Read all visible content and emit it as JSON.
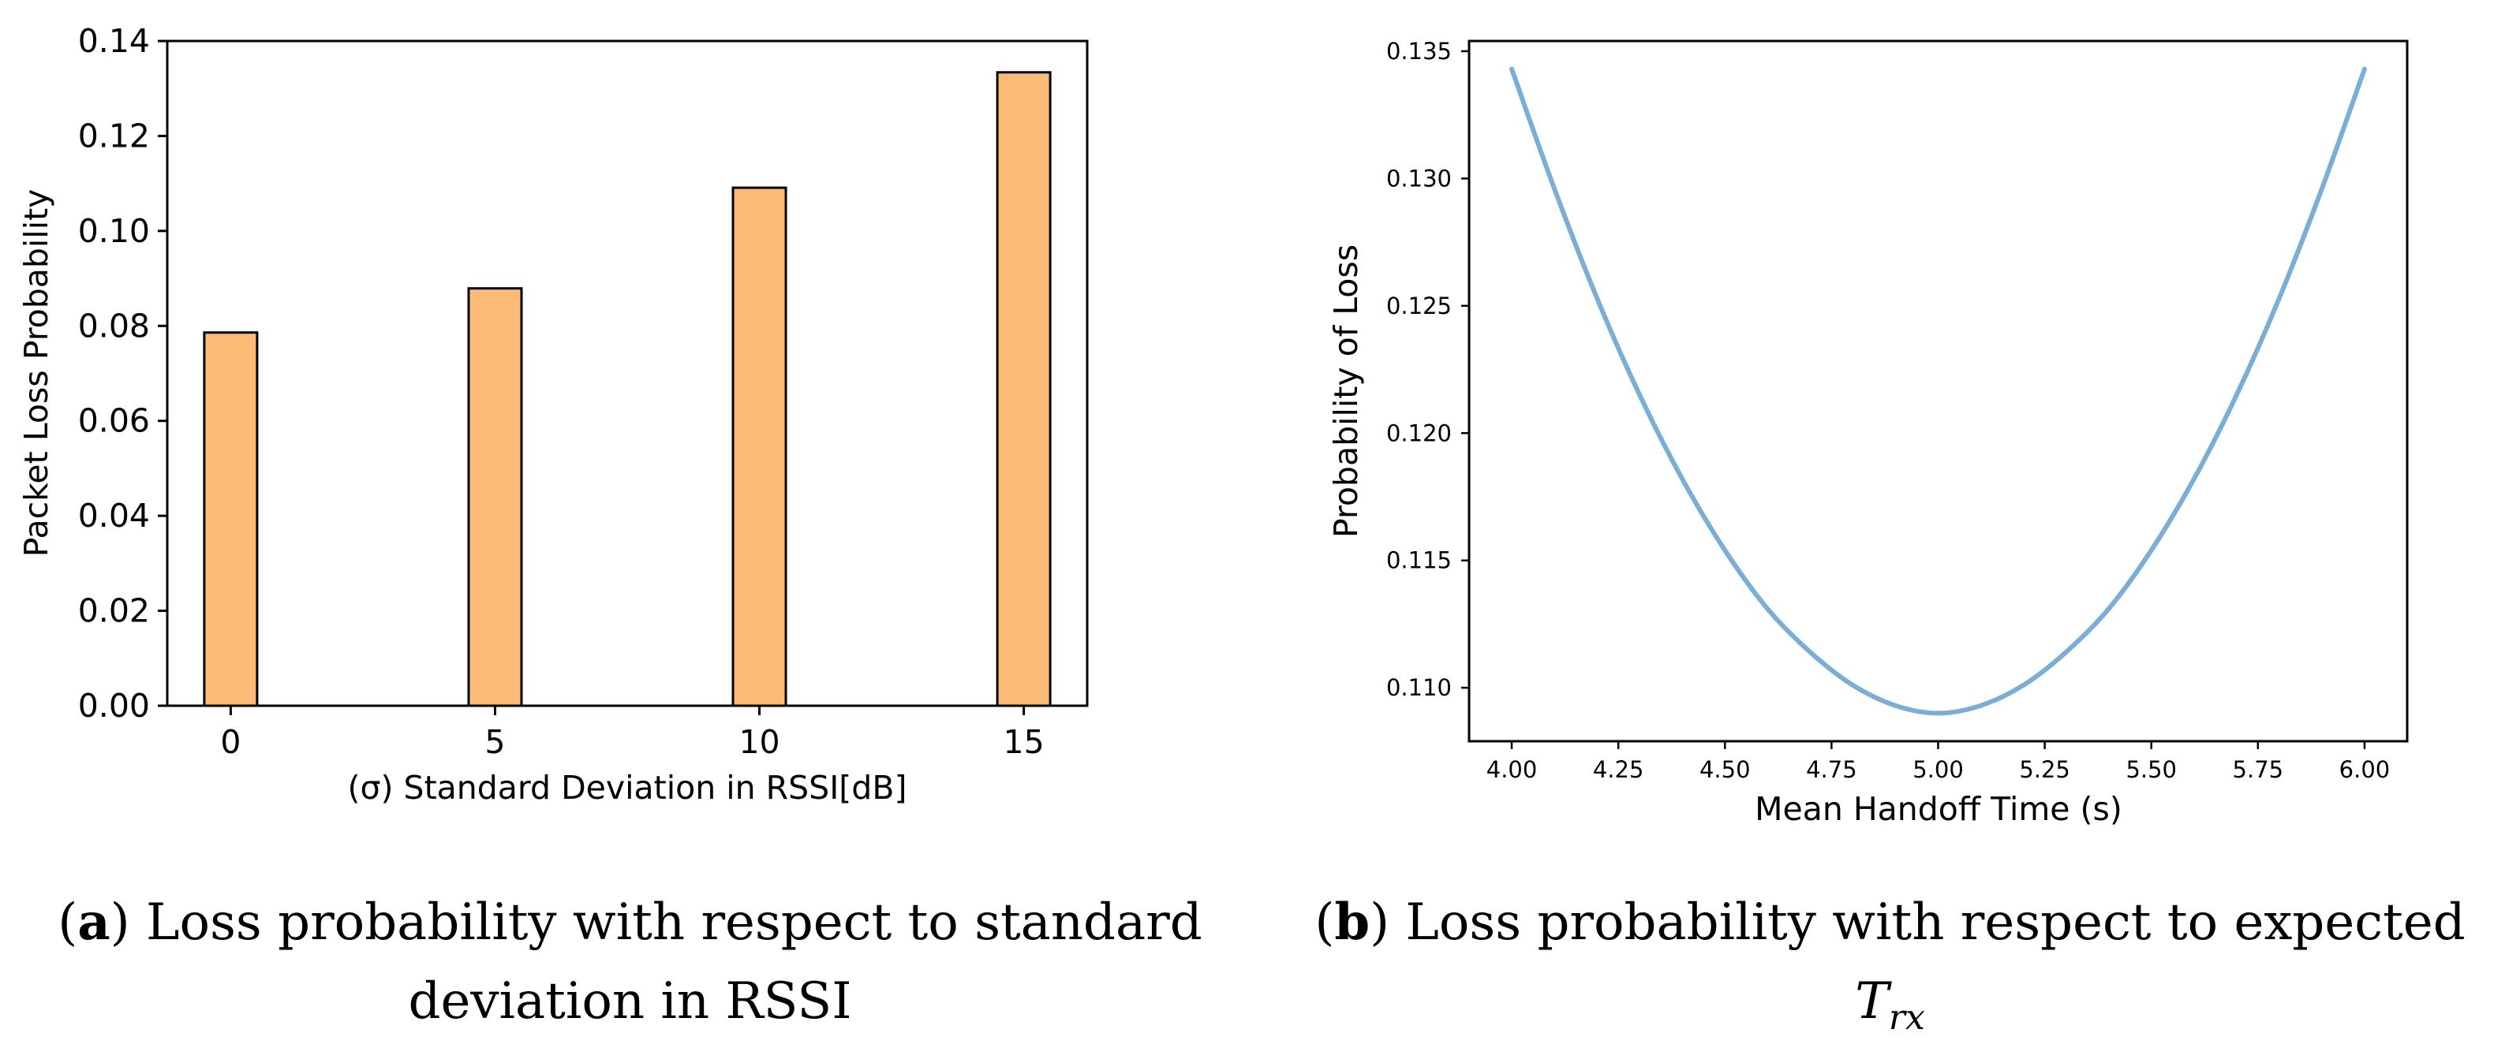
{
  "chart_data": [
    {
      "type": "bar",
      "categories": [
        "0",
        "5",
        "10",
        "15"
      ],
      "x": [
        0,
        5,
        10,
        15
      ],
      "values": [
        0.0786,
        0.0879,
        0.1091,
        0.1334
      ],
      "title": "",
      "xlabel": "(σ) Standard Deviation in RSSI[dB]",
      "ylabel": "Packet Loss Probability",
      "xlim": [
        -1.2,
        16.2
      ],
      "ylim": [
        0.0,
        0.14
      ],
      "yticks": [
        "0.00",
        "0.02",
        "0.04",
        "0.06",
        "0.08",
        "0.10",
        "0.12",
        "0.14"
      ],
      "xticks": [
        "0",
        "5",
        "10",
        "15"
      ],
      "bar_color": "#fdbb78",
      "edge_color": "#000000",
      "grid": false
    },
    {
      "type": "line",
      "title": "",
      "xlabel": "Mean Handoff Time (s)",
      "ylabel": "Probability of Loss",
      "xlim": [
        3.9,
        6.1
      ],
      "ylim": [
        0.1079,
        0.1354
      ],
      "xticks": [
        "4.00",
        "4.25",
        "4.50",
        "4.75",
        "5.00",
        "5.25",
        "5.50",
        "5.75",
        "6.00"
      ],
      "yticks": [
        "0.110",
        "0.115",
        "0.120",
        "0.125",
        "0.130",
        "0.135"
      ],
      "series": [
        {
          "x": [
            4.0,
            4.1,
            4.2,
            4.3,
            4.4,
            4.5,
            4.6,
            4.7,
            4.8,
            4.9,
            5.0,
            5.1,
            5.2,
            5.3,
            5.4,
            5.5,
            5.6,
            5.7,
            5.8,
            5.9,
            6.0
          ],
          "values": [
            0.1343,
            0.1296,
            0.1253,
            0.1215,
            0.1182,
            0.1154,
            0.1131,
            0.1114,
            0.1101,
            0.1093,
            0.109,
            0.1093,
            0.1101,
            0.1114,
            0.1131,
            0.1154,
            0.1182,
            0.1215,
            0.1253,
            0.1296,
            0.1343
          ]
        }
      ],
      "line_color": "#7aaed6",
      "grid": false
    }
  ],
  "captions": {
    "a": {
      "letter": "a",
      "text": "Loss probability with respect to standard deviation in RSSI"
    },
    "b": {
      "letter": "b",
      "text": "Loss probability with respect to expected",
      "math_main": "T",
      "math_sub": "rx"
    }
  }
}
